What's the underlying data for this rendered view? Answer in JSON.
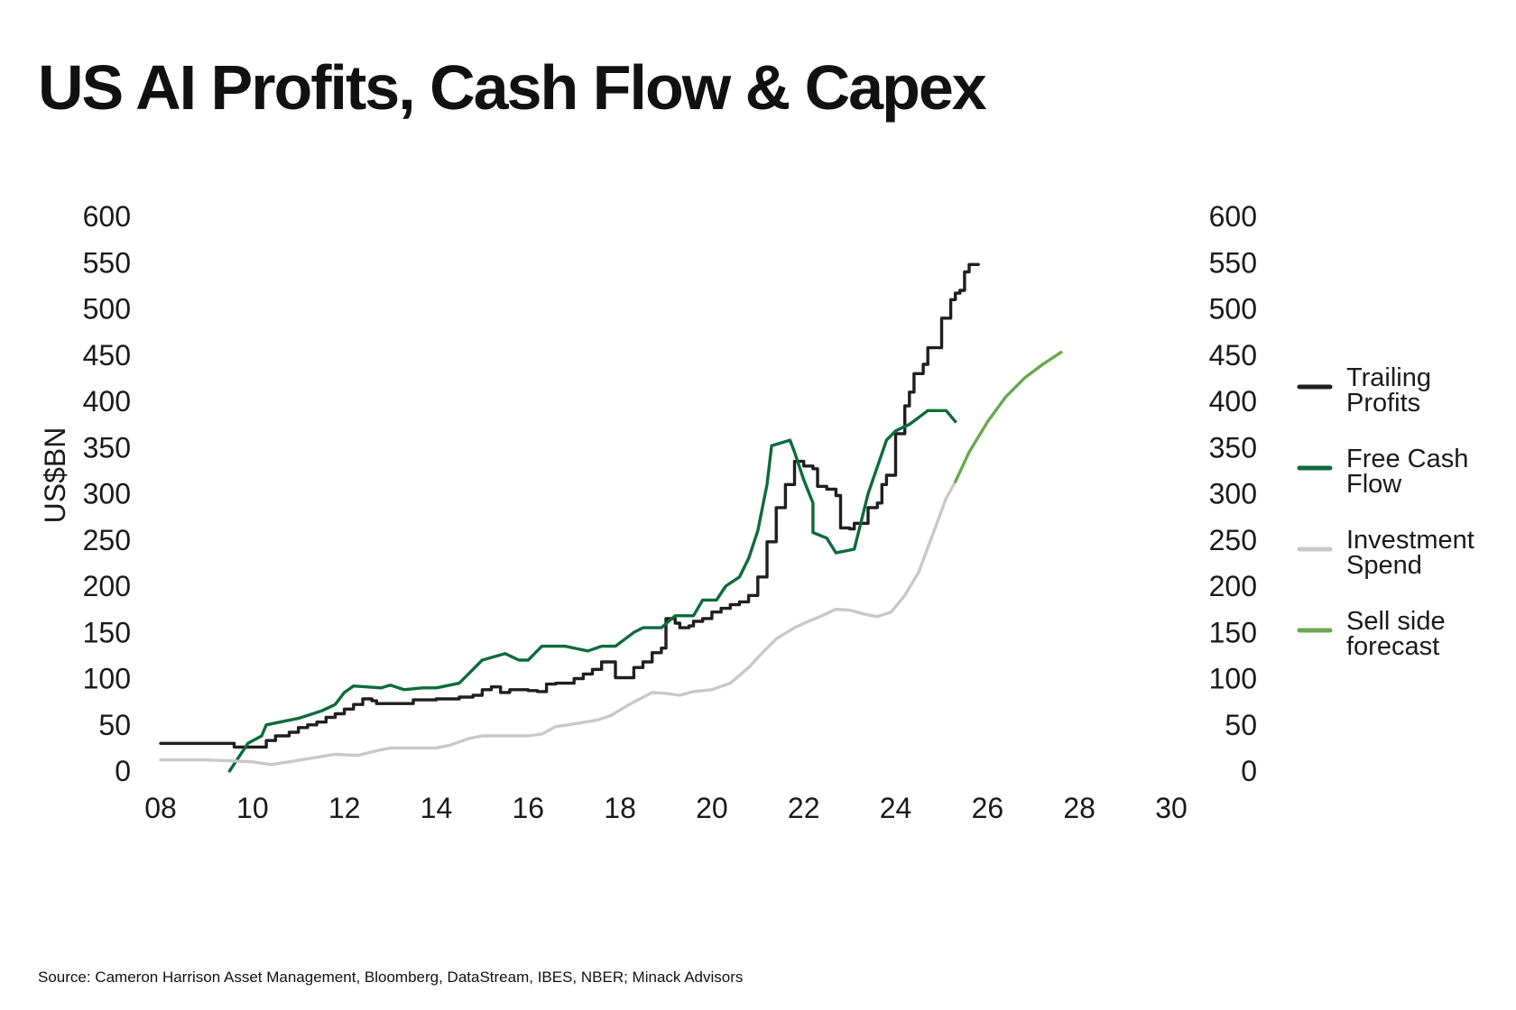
{
  "title": "US AI Profits, Cash Flow & Capex",
  "source": "Source: Cameron Harrison Asset Management, Bloomberg, DataStream, IBES, NBER; Minack Advisors",
  "colors": {
    "trailing_profits": "#1f1f1f",
    "free_cash_flow": "#0e6b3a",
    "investment_spend": "#c8c8c8",
    "sell_side_forecast": "#6aa84f"
  },
  "chart_data": {
    "type": "line",
    "ylabel": "US$BN",
    "xlim": [
      8,
      30
    ],
    "ylim": [
      0,
      600
    ],
    "x_ticks": [
      8,
      10,
      12,
      14,
      16,
      18,
      20,
      22,
      24,
      26,
      28,
      30
    ],
    "x_tick_labels": [
      "08",
      "10",
      "12",
      "14",
      "16",
      "18",
      "20",
      "22",
      "24",
      "26",
      "28",
      "30"
    ],
    "y_ticks": [
      0,
      50,
      100,
      150,
      200,
      250,
      300,
      350,
      400,
      450,
      500,
      550,
      600
    ],
    "y_tick_labels": [
      "0",
      "50",
      "100",
      "150",
      "200",
      "250",
      "300",
      "350",
      "400",
      "450",
      "500",
      "550",
      "600"
    ],
    "grid": false,
    "legend_position": "right",
    "series": [
      {
        "name": "Trailing\nProfits",
        "color_key": "trailing_profits",
        "step": true,
        "points": [
          [
            8.0,
            30
          ],
          [
            9.0,
            30
          ],
          [
            9.6,
            26
          ],
          [
            10.1,
            26
          ],
          [
            10.3,
            33
          ],
          [
            10.5,
            38
          ],
          [
            10.8,
            42
          ],
          [
            11.0,
            47
          ],
          [
            11.2,
            50
          ],
          [
            11.4,
            53
          ],
          [
            11.6,
            58
          ],
          [
            11.8,
            62
          ],
          [
            12.0,
            67
          ],
          [
            12.2,
            72
          ],
          [
            12.4,
            78
          ],
          [
            12.6,
            76
          ],
          [
            12.7,
            73
          ],
          [
            13.0,
            73
          ],
          [
            13.3,
            73
          ],
          [
            13.5,
            77
          ],
          [
            14.0,
            78
          ],
          [
            14.5,
            80
          ],
          [
            14.8,
            82
          ],
          [
            15.0,
            88
          ],
          [
            15.2,
            91
          ],
          [
            15.4,
            85
          ],
          [
            15.6,
            88
          ],
          [
            16.0,
            87
          ],
          [
            16.2,
            86
          ],
          [
            16.4,
            94
          ],
          [
            16.6,
            95
          ],
          [
            16.9,
            95
          ],
          [
            17.0,
            100
          ],
          [
            17.2,
            105
          ],
          [
            17.4,
            110
          ],
          [
            17.6,
            118
          ],
          [
            17.8,
            118
          ],
          [
            17.9,
            101
          ],
          [
            18.2,
            101
          ],
          [
            18.3,
            112
          ],
          [
            18.5,
            118
          ],
          [
            18.7,
            128
          ],
          [
            18.9,
            133
          ],
          [
            19.0,
            165
          ],
          [
            19.2,
            160
          ],
          [
            19.3,
            155
          ],
          [
            19.5,
            157
          ],
          [
            19.6,
            162
          ],
          [
            19.8,
            165
          ],
          [
            20.0,
            172
          ],
          [
            20.2,
            176
          ],
          [
            20.4,
            180
          ],
          [
            20.6,
            183
          ],
          [
            20.8,
            190
          ],
          [
            21.0,
            210
          ],
          [
            21.2,
            248
          ],
          [
            21.4,
            285
          ],
          [
            21.6,
            310
          ],
          [
            21.8,
            335
          ],
          [
            22.0,
            330
          ],
          [
            22.2,
            327
          ],
          [
            22.3,
            308
          ],
          [
            22.5,
            305
          ],
          [
            22.7,
            298
          ],
          [
            22.8,
            263
          ],
          [
            23.0,
            262
          ],
          [
            23.1,
            268
          ],
          [
            23.3,
            268
          ],
          [
            23.4,
            285
          ],
          [
            23.6,
            290
          ],
          [
            23.7,
            310
          ],
          [
            23.8,
            320
          ],
          [
            24.0,
            365
          ],
          [
            24.2,
            395
          ],
          [
            24.3,
            410
          ],
          [
            24.4,
            430
          ],
          [
            24.6,
            440
          ],
          [
            24.7,
            458
          ],
          [
            25.0,
            490
          ],
          [
            25.2,
            510
          ],
          [
            25.3,
            517
          ],
          [
            25.4,
            520
          ],
          [
            25.5,
            540
          ],
          [
            25.6,
            548
          ],
          [
            25.8,
            548
          ]
        ]
      },
      {
        "name": "Free Cash\nFlow",
        "color_key": "free_cash_flow",
        "step": false,
        "points": [
          [
            9.5,
            0
          ],
          [
            9.9,
            30
          ],
          [
            10.2,
            38
          ],
          [
            10.3,
            50
          ],
          [
            11.0,
            57
          ],
          [
            11.5,
            65
          ],
          [
            11.8,
            72
          ],
          [
            12.0,
            85
          ],
          [
            12.2,
            92
          ],
          [
            12.8,
            90
          ],
          [
            13.0,
            93
          ],
          [
            13.3,
            88
          ],
          [
            13.7,
            90
          ],
          [
            14.0,
            90
          ],
          [
            14.5,
            95
          ],
          [
            15.0,
            120
          ],
          [
            15.5,
            127
          ],
          [
            15.8,
            120
          ],
          [
            16.0,
            120
          ],
          [
            16.3,
            135
          ],
          [
            16.8,
            135
          ],
          [
            17.3,
            130
          ],
          [
            17.6,
            135
          ],
          [
            17.9,
            135
          ],
          [
            18.3,
            150
          ],
          [
            18.5,
            155
          ],
          [
            18.9,
            155
          ],
          [
            19.2,
            168
          ],
          [
            19.6,
            168
          ],
          [
            19.8,
            185
          ],
          [
            20.1,
            185
          ],
          [
            20.3,
            200
          ],
          [
            20.6,
            210
          ],
          [
            20.8,
            230
          ],
          [
            21.0,
            260
          ],
          [
            21.2,
            310
          ],
          [
            21.3,
            352
          ],
          [
            21.7,
            358
          ],
          [
            21.8,
            345
          ],
          [
            22.0,
            315
          ],
          [
            22.2,
            290
          ],
          [
            22.2,
            258
          ],
          [
            22.5,
            252
          ],
          [
            22.7,
            236
          ],
          [
            23.1,
            240
          ],
          [
            23.4,
            300
          ],
          [
            23.8,
            358
          ],
          [
            24.0,
            368
          ],
          [
            24.3,
            375
          ],
          [
            24.7,
            390
          ],
          [
            25.1,
            390
          ],
          [
            25.3,
            378
          ]
        ]
      },
      {
        "name": "Investment\nSpend",
        "color_key": "investment_spend",
        "step": false,
        "points": [
          [
            8.0,
            12
          ],
          [
            9.0,
            12
          ],
          [
            9.5,
            11
          ],
          [
            10.0,
            10
          ],
          [
            10.4,
            7
          ],
          [
            10.8,
            10
          ],
          [
            11.3,
            14
          ],
          [
            11.8,
            18
          ],
          [
            12.3,
            17
          ],
          [
            12.7,
            22
          ],
          [
            13.0,
            25
          ],
          [
            13.5,
            25
          ],
          [
            14.0,
            25
          ],
          [
            14.3,
            28
          ],
          [
            14.7,
            35
          ],
          [
            15.0,
            38
          ],
          [
            15.5,
            38
          ],
          [
            16.0,
            38
          ],
          [
            16.3,
            40
          ],
          [
            16.6,
            48
          ],
          [
            17.0,
            51
          ],
          [
            17.5,
            55
          ],
          [
            17.8,
            60
          ],
          [
            18.2,
            72
          ],
          [
            18.7,
            85
          ],
          [
            19.0,
            84
          ],
          [
            19.3,
            82
          ],
          [
            19.6,
            86
          ],
          [
            20.0,
            88
          ],
          [
            20.4,
            95
          ],
          [
            20.8,
            112
          ],
          [
            21.1,
            128
          ],
          [
            21.4,
            143
          ],
          [
            21.8,
            155
          ],
          [
            22.1,
            162
          ],
          [
            22.4,
            168
          ],
          [
            22.7,
            175
          ],
          [
            23.0,
            174
          ],
          [
            23.3,
            170
          ],
          [
            23.6,
            167
          ],
          [
            23.9,
            172
          ],
          [
            24.2,
            190
          ],
          [
            24.5,
            215
          ],
          [
            24.8,
            255
          ],
          [
            25.1,
            295
          ],
          [
            25.3,
            313
          ]
        ]
      },
      {
        "name": "Sell side\nforecast",
        "color_key": "sell_side_forecast",
        "step": false,
        "points": [
          [
            25.3,
            313
          ],
          [
            25.6,
            345
          ],
          [
            26.0,
            378
          ],
          [
            26.4,
            405
          ],
          [
            26.8,
            425
          ],
          [
            27.2,
            440
          ],
          [
            27.6,
            453
          ]
        ]
      }
    ]
  }
}
